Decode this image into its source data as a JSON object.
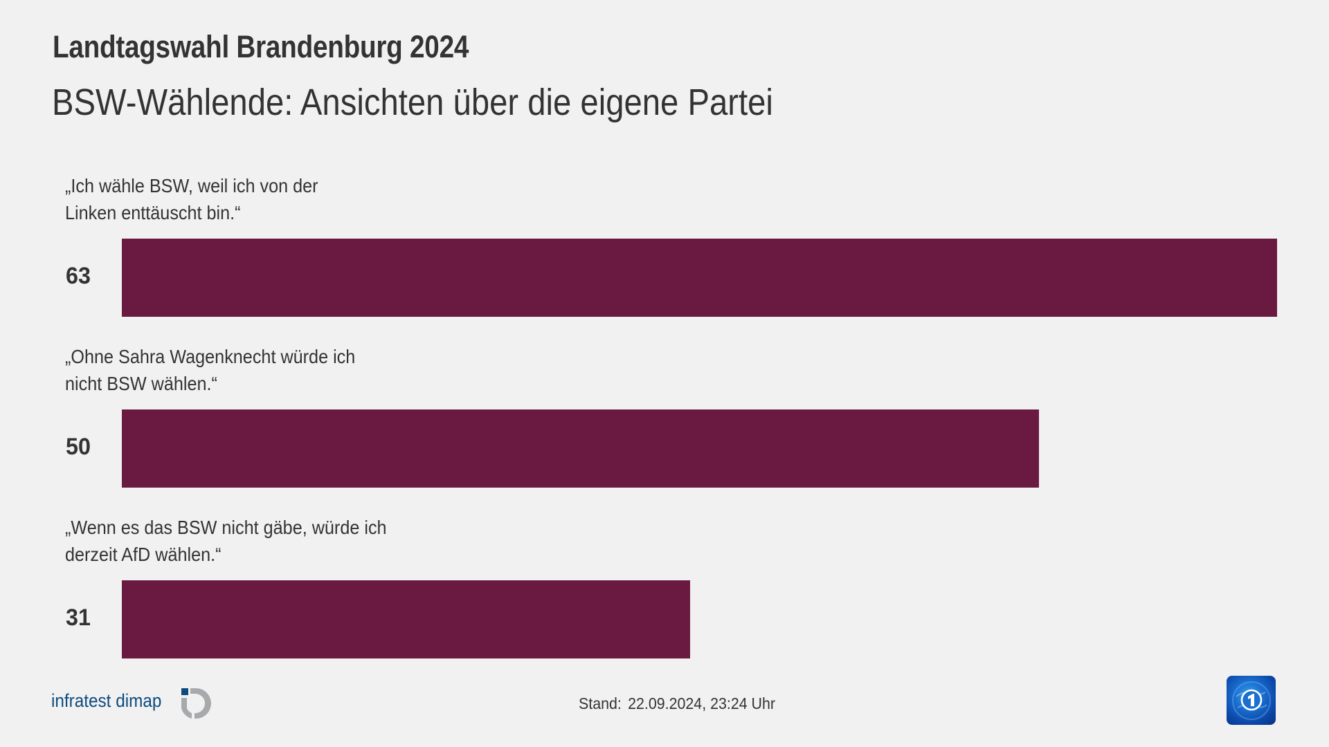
{
  "header": {
    "title": "Landtagswahl Brandenburg 2024",
    "subtitle": "BSW-Wählende: Ansichten über die eigene Partei"
  },
  "colors": {
    "bar": "#6a1a41",
    "background": "#f1f1f1",
    "text": "#333333",
    "brand_blue": "#0e4a7e",
    "brand_gray": "#a7aaad"
  },
  "rows": [
    {
      "label_lines": [
        "„Ich wähle BSW, weil ich von der",
        "Linken enttäuscht bin.“"
      ],
      "value": "63"
    },
    {
      "label_lines": [
        "„Ohne Sahra Wagenknecht würde ich",
        "nicht BSW wählen.“"
      ],
      "value": "50"
    },
    {
      "label_lines": [
        "„Wenn es das BSW nicht gäbe, würde ich",
        "derzeit AfD wählen.“"
      ],
      "value": "31"
    }
  ],
  "footer": {
    "source": "infratest dimap",
    "stand_label": "Stand:",
    "stand_value": "22.09.2024, 23:24 Uhr",
    "source_logo_icon": "infratest-dimap-logo-icon",
    "broadcaster_logo_icon": "tagesschau-ard-logo-icon"
  },
  "chart_data": {
    "type": "bar",
    "orientation": "horizontal",
    "title": "Landtagswahl Brandenburg 2024",
    "subtitle": "BSW-Wählende: Ansichten über die eigene Partei",
    "categories": [
      "„Ich wähle BSW, weil ich von der Linken enttäuscht bin.“",
      "„Ohne Sahra Wagenknecht würde ich nicht BSW wählen.“",
      "„Wenn es das BSW nicht gäbe, würde ich derzeit AfD wählen.“"
    ],
    "values": [
      63,
      50,
      31
    ],
    "xlabel": "",
    "ylabel": "",
    "xlim": [
      0,
      63
    ],
    "grid": false,
    "legend": null,
    "bar_color": "#6a1a41",
    "source": "infratest dimap",
    "annotation": "Stand: 22.09.2024, 23:24 Uhr"
  }
}
